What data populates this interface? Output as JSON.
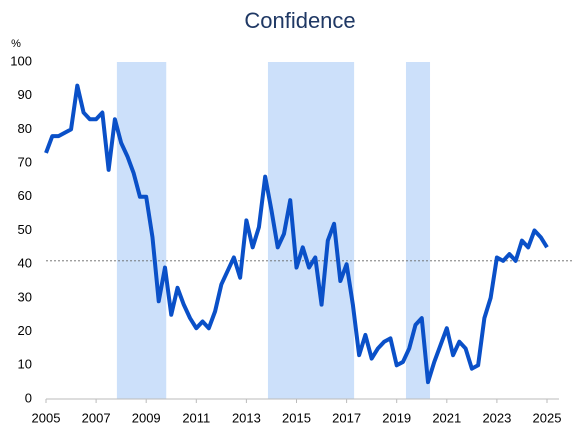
{
  "chart_data": {
    "type": "line",
    "title": "Confidence",
    "y_label": "%",
    "x": [
      2005,
      2005.25,
      2005.5,
      2005.75,
      2006,
      2006.25,
      2006.5,
      2006.75,
      2007,
      2007.25,
      2007.5,
      2007.75,
      2008,
      2008.25,
      2008.5,
      2008.75,
      2009,
      2009.25,
      2009.5,
      2009.75,
      2010,
      2010.25,
      2010.5,
      2010.75,
      2011,
      2011.25,
      2011.5,
      2011.75,
      2012,
      2012.25,
      2012.5,
      2012.75,
      2013,
      2013.25,
      2013.5,
      2013.75,
      2014,
      2014.25,
      2014.5,
      2014.75,
      2015,
      2015.25,
      2015.5,
      2015.75,
      2016,
      2016.25,
      2016.5,
      2016.75,
      2017,
      2017.25,
      2017.5,
      2017.75,
      2018,
      2018.25,
      2018.5,
      2018.75,
      2019,
      2019.25,
      2019.5,
      2019.75,
      2020,
      2020.25,
      2020.5,
      2020.75,
      2021,
      2021.25,
      2021.5,
      2021.75,
      2022,
      2022.25,
      2022.5,
      2022.75,
      2023,
      2023.25,
      2023.5,
      2023.75,
      2024,
      2024.25,
      2024.5,
      2024.75,
      2025
    ],
    "series": [
      {
        "name": "Confidence",
        "color": "#0a50c8",
        "values": [
          73,
          78,
          78,
          79,
          80,
          93,
          85,
          83,
          83,
          85,
          68,
          83,
          76,
          72,
          67,
          60,
          60,
          48,
          29,
          39,
          25,
          33,
          28,
          24,
          21,
          23,
          21,
          26,
          34,
          38,
          42,
          36,
          53,
          45,
          51,
          66,
          56,
          45,
          49,
          59,
          39,
          45,
          39,
          42,
          28,
          47,
          52,
          35,
          40,
          28,
          13,
          19,
          12,
          15,
          17,
          18,
          10,
          11,
          15,
          22,
          24,
          5,
          11,
          16,
          21,
          13,
          17,
          15,
          9,
          10,
          24,
          30,
          42,
          41,
          43,
          41,
          47,
          45,
          50,
          48,
          45
        ]
      }
    ],
    "bands": [
      [
        2007.83,
        2009.8
      ],
      [
        2013.86,
        2017.3
      ],
      [
        2019.37,
        2020.33
      ]
    ],
    "band_color": "#cce0fa",
    "average": 41,
    "xlim": [
      2005,
      2025
    ],
    "xticks": [
      2005,
      2007,
      2009,
      2011,
      2013,
      2015,
      2017,
      2019,
      2021,
      2023,
      2025
    ],
    "ylim": [
      0,
      100
    ],
    "yticks": [
      0,
      10,
      20,
      30,
      40,
      50,
      60,
      70,
      80,
      90,
      100
    ]
  }
}
